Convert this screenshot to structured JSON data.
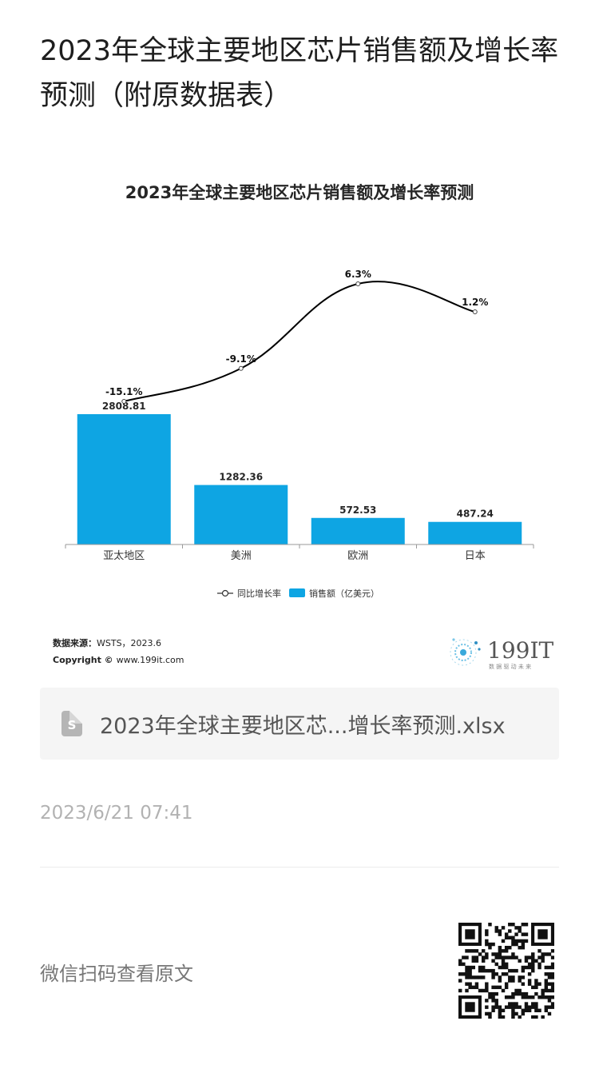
{
  "article": {
    "title": "2023年全球主要地区芯片销售额及增长率预测（附原数据表）",
    "file_name": "2023年全球主要地区芯...增长率预测.xlsx",
    "file_icon_letter": "S",
    "timestamp": "2023/6/21 07:41",
    "scan_text": "微信扫码查看原文"
  },
  "chart_data": {
    "type": "bar",
    "title": "2023年全球主要地区芯片销售额及增长率预测",
    "categories": [
      "亚太地区",
      "美洲",
      "欧洲",
      "日本"
    ],
    "series": [
      {
        "name": "销售额（亿美元）",
        "type": "bar",
        "values": [
          2808.81,
          1282.36,
          572.53,
          487.24
        ],
        "labels": [
          "2808.81",
          "1282.36",
          "572.53",
          "487.24"
        ],
        "color": "#0ea5e3"
      },
      {
        "name": "同比增长率",
        "type": "line",
        "values": [
          -15.1,
          -9.1,
          6.3,
          1.2
        ],
        "labels": [
          "-15.1%",
          "-9.1%",
          "6.3%",
          "1.2%"
        ],
        "color": "#000000",
        "smooth": true
      }
    ],
    "legend": {
      "placement": "bottom"
    },
    "grid": false
  },
  "source": {
    "label": "数据来源：",
    "value": "WSTS，2023.6",
    "copyright_label": "Copyright ©",
    "copyright_value": "www.199it.com"
  },
  "brand": {
    "logo_text": "199IT",
    "tagline": "数 据 驱 动 未 来"
  }
}
